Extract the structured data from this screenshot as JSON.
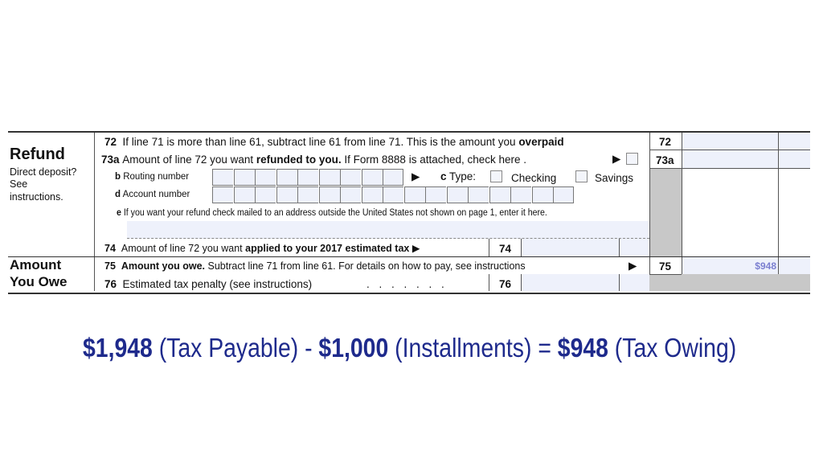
{
  "sections": {
    "refund": {
      "title": "Refund",
      "note_lines": [
        "Direct deposit?",
        "See",
        "instructions."
      ]
    },
    "amount_you_owe": {
      "title_lines": [
        "Amount",
        "You Owe"
      ]
    }
  },
  "lines": {
    "l72": {
      "num": "72",
      "text": "If line 71 is more than line 61, subtract line 61 from line 71. This is the amount you ",
      "bold": "overpaid",
      "box": "72"
    },
    "l73a": {
      "num": "73a",
      "text1": "Amount of line 72 you want ",
      "bold": "refunded to you.",
      "text2": " If Form 8888 is attached, check here .",
      "arrow": "▶",
      "box": "73a"
    },
    "l73b": {
      "letter": "b",
      "text": "Routing number",
      "arrow": "▶",
      "digits": 9
    },
    "l73c": {
      "letter": "c",
      "text": "Type:",
      "checking": "Checking",
      "savings": "Savings"
    },
    "l73d": {
      "letter": "d",
      "text": "Account number",
      "digits": 17
    },
    "l73e": {
      "letter": "e",
      "text": "If you want your refund check mailed to an address outside the United States not shown on page 1, enter it here."
    },
    "l74": {
      "num": "74",
      "text": "Amount of line 72 you want ",
      "bold": "applied to your 2017 estimated tax",
      "arrow": "▶",
      "box": "74"
    },
    "l75": {
      "num": "75",
      "bold": "Amount you owe.",
      "text": " Subtract line 71 from line 61. For details on how to pay, see instructions",
      "arrow": "▶",
      "box": "75",
      "value": "$948"
    },
    "l76": {
      "num": "76",
      "text": "Estimated tax penalty (see instructions)",
      "dots": ". . . . . . .",
      "box": "76"
    }
  },
  "equation": {
    "tax_payable": "$1,948",
    "tax_payable_label": " (Tax Payable) - ",
    "installments": " $1,000",
    "installments_label": " (Installments) = ",
    "tax_owing": "$948",
    "tax_owing_label": " (Tax Owing)"
  },
  "colors": {
    "equation": "#1e2a8c",
    "field_fill": "#eef1fb",
    "value_text": "#7b7fd0",
    "shaded": "#c8c8c8"
  }
}
